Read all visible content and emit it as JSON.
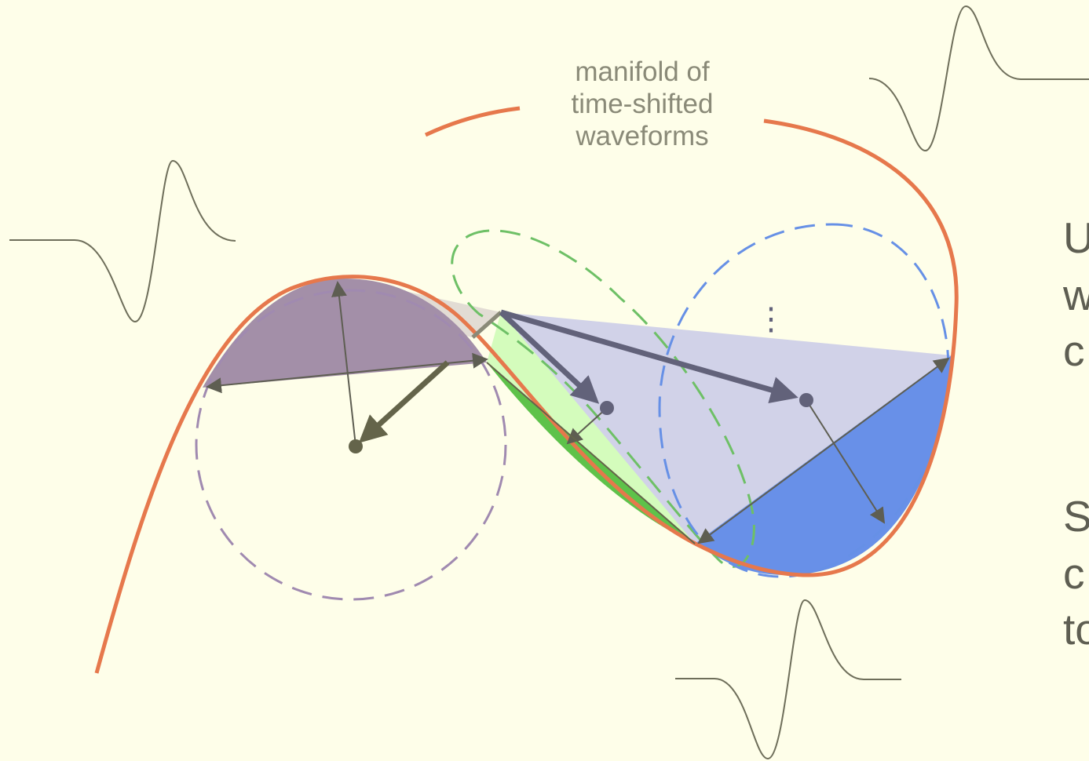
{
  "manifold_label": {
    "line1": "manifold of",
    "line2": "time-shifted",
    "line3": "waveforms"
  },
  "side_text": {
    "block1": [
      "U",
      "w",
      "c"
    ],
    "block2": [
      "S",
      "c",
      "to"
    ]
  },
  "ellipsis": "⋮",
  "colors": {
    "background": "#fefee9",
    "manifold": "#e6784c",
    "waveform": "#6e6e5a",
    "arrow_dark": "#64644a",
    "arrow_slate": "#62627a",
    "purple_region": "#a38fa8",
    "green_region": "#5ec24a",
    "light_green": "#d4fcbc",
    "blue_region": "#6890e8",
    "lavender": "#cfd0e8",
    "purple_circle": "#a08ab0",
    "green_dashed": "#6ec066",
    "blue_dashed": "#6690e6"
  }
}
